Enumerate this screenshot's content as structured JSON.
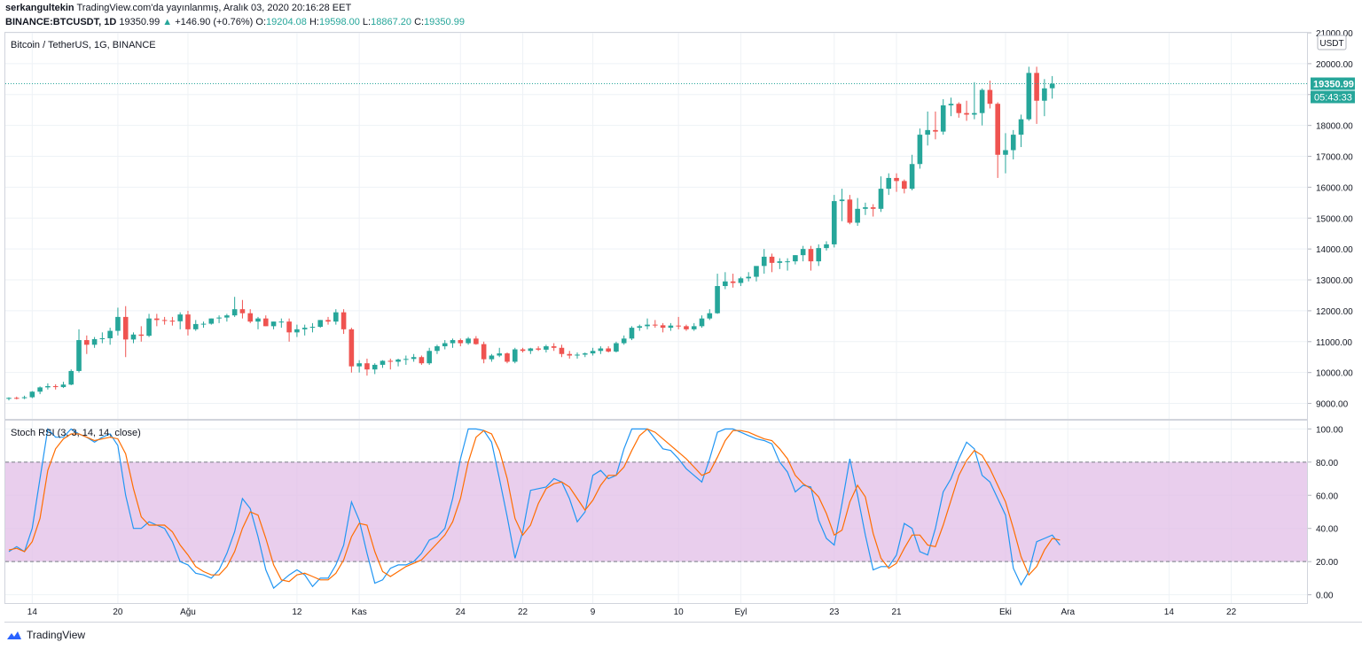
{
  "header": {
    "author": "serkangultekin",
    "published": "TradingView.com'da yayınlanmış, Aralık 03, 2020 20:16:28 EET",
    "symbol_line": "BINANCE:BTCUSDT, 1D",
    "last": "19350.99",
    "change": "+146.90 (+0.76%)",
    "o_label": "O:",
    "o": "19204.08",
    "h_label": "H:",
    "h": "19598.00",
    "l_label": "L:",
    "l": "18867.20",
    "c_label": "C:",
    "c": "19350.99"
  },
  "price_pane": {
    "title": "Bitcoin / TetherUS, 1G, BINANCE",
    "currency": "USDT",
    "last_price_label": "19350.99",
    "countdown_label": "05:43:33",
    "y_ticks": [
      "21000.00",
      "20000.00",
      "19000.00",
      "18000.00",
      "17000.00",
      "16000.00",
      "15000.00",
      "14000.00",
      "13000.00",
      "12000.00",
      "11000.00",
      "10000.00",
      "9000.00"
    ]
  },
  "osc_pane": {
    "title": "Stoch RSI (3, 3, 14, 14, close)",
    "y_ticks": [
      "100.00",
      "80.00",
      "60.00",
      "40.00",
      "20.00",
      "0.00"
    ]
  },
  "x_axis_labels": [
    "21",
    "Ağu",
    "10",
    "24",
    "Eyl",
    "14",
    "22",
    "Eki",
    "12",
    "20",
    "Kas",
    "9",
    "23",
    "Ara",
    "14",
    "22"
  ],
  "footer": {
    "brand": "TradingView"
  },
  "colors": {
    "up": "#26a69a",
    "down": "#ef5350",
    "k_line": "#2196f3",
    "d_line": "#ff6d00",
    "band_fill": "#e1bee7",
    "grid": "#eef2f6"
  },
  "chart_data": [
    {
      "type": "candlestick",
      "title": "Bitcoin / TetherUS, 1G, BINANCE",
      "ylim": [
        8500,
        21000
      ],
      "x_start": "2020-07-18",
      "x_end": "2020-12-03",
      "x_label_dates": {
        "21": "2020-07-21",
        "Ağu": "2020-08-01",
        "10": "2020-08-10",
        "24": "2020-08-24",
        "Eyl": "2020-09-01",
        "14": "2020-09-14",
        "22": "2020-09-22",
        "Eki": "2020-10-01",
        "12": "2020-10-12",
        "20": "2020-10-20",
        "Kas": "2020-11-01",
        "9": "2020-11-09",
        "23": "2020-11-23",
        "Ara": "2020-12-01",
        "14b": "2020-12-14",
        "22b": "2020-12-22"
      },
      "ohlc_daily": [
        [
          9150,
          9200,
          9100,
          9180
        ],
        [
          9180,
          9220,
          9130,
          9170
        ],
        [
          9170,
          9250,
          9140,
          9200
        ],
        [
          9200,
          9400,
          9170,
          9380
        ],
        [
          9380,
          9550,
          9300,
          9520
        ],
        [
          9520,
          9650,
          9450,
          9560
        ],
        [
          9560,
          9620,
          9450,
          9530
        ],
        [
          9530,
          9700,
          9500,
          9610
        ],
        [
          9610,
          10100,
          9590,
          10050
        ],
        [
          10050,
          11400,
          10000,
          11050
        ],
        [
          11050,
          11200,
          10600,
          10900
        ],
        [
          10900,
          11150,
          10800,
          11080
        ],
        [
          11080,
          11300,
          10950,
          11110
        ],
        [
          11110,
          11450,
          10900,
          11350
        ],
        [
          11350,
          12100,
          11200,
          11800
        ],
        [
          11800,
          12150,
          10500,
          11070
        ],
        [
          11070,
          11300,
          10950,
          11230
        ],
        [
          11230,
          11500,
          11000,
          11190
        ],
        [
          11190,
          11900,
          11150,
          11750
        ],
        [
          11750,
          11900,
          11500,
          11700
        ],
        [
          11700,
          11800,
          11550,
          11680
        ],
        [
          11680,
          11800,
          11520,
          11660
        ],
        [
          11660,
          11950,
          11400,
          11880
        ],
        [
          11880,
          12000,
          11200,
          11400
        ],
        [
          11400,
          11700,
          11350,
          11570
        ],
        [
          11570,
          11650,
          11450,
          11580
        ],
        [
          11580,
          11750,
          11550,
          11750
        ],
        [
          11750,
          11850,
          11600,
          11780
        ],
        [
          11780,
          11900,
          11650,
          11850
        ],
        [
          11850,
          12450,
          11800,
          12050
        ],
        [
          12050,
          12350,
          11750,
          11920
        ],
        [
          11920,
          12050,
          11600,
          11650
        ],
        [
          11650,
          11800,
          11400,
          11750
        ],
        [
          11750,
          11850,
          11500,
          11500
        ],
        [
          11500,
          11650,
          11400,
          11650
        ],
        [
          11650,
          11750,
          11450,
          11650
        ],
        [
          11650,
          11750,
          11000,
          11300
        ],
        [
          11300,
          11550,
          11150,
          11400
        ],
        [
          11400,
          11550,
          11200,
          11450
        ],
        [
          11450,
          11600,
          11300,
          11480
        ],
        [
          11480,
          11700,
          11450,
          11700
        ],
        [
          11700,
          11800,
          11550,
          11650
        ],
        [
          11650,
          12050,
          11550,
          11950
        ],
        [
          11950,
          12050,
          11250,
          11400
        ],
        [
          11400,
          11450,
          10000,
          10200
        ],
        [
          10200,
          10400,
          10000,
          10300
        ],
        [
          10300,
          10450,
          9900,
          10100
        ],
        [
          10100,
          10300,
          9950,
          10250
        ],
        [
          10250,
          10400,
          10150,
          10380
        ],
        [
          10380,
          10450,
          10100,
          10350
        ],
        [
          10350,
          10450,
          10200,
          10420
        ],
        [
          10420,
          10550,
          10250,
          10440
        ],
        [
          10440,
          10600,
          10350,
          10500
        ],
        [
          10500,
          10550,
          10250,
          10300
        ],
        [
          10300,
          10800,
          10250,
          10700
        ],
        [
          10700,
          10900,
          10600,
          10850
        ],
        [
          10850,
          11050,
          10750,
          10950
        ],
        [
          10950,
          11100,
          10800,
          11050
        ],
        [
          11050,
          11100,
          10850,
          10950
        ],
        [
          10950,
          11150,
          10900,
          11100
        ],
        [
          11100,
          11180,
          10900,
          10920
        ],
        [
          10920,
          11000,
          10300,
          10430
        ],
        [
          10430,
          10600,
          10350,
          10550
        ],
        [
          10550,
          10800,
          10500,
          10620
        ],
        [
          10620,
          10650,
          10300,
          10350
        ],
        [
          10350,
          10800,
          10300,
          10750
        ],
        [
          10750,
          10800,
          10650,
          10700
        ],
        [
          10700,
          10800,
          10600,
          10780
        ],
        [
          10780,
          10850,
          10700,
          10740
        ],
        [
          10740,
          10900,
          10650,
          10850
        ],
        [
          10850,
          10950,
          10700,
          10800
        ],
        [
          10800,
          10900,
          10500,
          10600
        ],
        [
          10600,
          10700,
          10450,
          10550
        ],
        [
          10550,
          10650,
          10450,
          10580
        ],
        [
          10580,
          10650,
          10500,
          10620
        ],
        [
          10620,
          10800,
          10550,
          10700
        ],
        [
          10700,
          10850,
          10600,
          10780
        ],
        [
          10780,
          10850,
          10650,
          10680
        ],
        [
          10680,
          11000,
          10650,
          10950
        ],
        [
          10950,
          11200,
          10900,
          11100
        ],
        [
          11100,
          11500,
          11050,
          11450
        ],
        [
          11450,
          11550,
          11350,
          11500
        ],
        [
          11500,
          11750,
          11400,
          11550
        ],
        [
          11550,
          11700,
          11450,
          11530
        ],
        [
          11530,
          11600,
          11300,
          11450
        ],
        [
          11450,
          11600,
          11350,
          11520
        ],
        [
          11520,
          11800,
          11400,
          11500
        ],
        [
          11500,
          11550,
          11350,
          11400
        ],
        [
          11400,
          11600,
          11350,
          11500
        ],
        [
          11500,
          11850,
          11450,
          11750
        ],
        [
          11750,
          12050,
          11700,
          11920
        ],
        [
          11920,
          13200,
          11900,
          12800
        ],
        [
          12800,
          13250,
          12700,
          12950
        ],
        [
          12950,
          13200,
          12750,
          12900
        ],
        [
          12900,
          13100,
          12800,
          13050
        ],
        [
          13050,
          13250,
          12950,
          13100
        ],
        [
          13100,
          13400,
          12950,
          13450
        ],
        [
          13450,
          14000,
          13200,
          13750
        ],
        [
          13750,
          13850,
          13250,
          13550
        ],
        [
          13550,
          13700,
          13350,
          13600
        ],
        [
          13600,
          13700,
          13300,
          13600
        ],
        [
          13600,
          13800,
          13500,
          13800
        ],
        [
          13800,
          14100,
          13600,
          14000
        ],
        [
          14000,
          14100,
          13300,
          13600
        ],
        [
          13600,
          14150,
          13450,
          14030
        ],
        [
          14030,
          14250,
          13950,
          14150
        ],
        [
          14150,
          15750,
          14050,
          15550
        ],
        [
          15550,
          15950,
          14900,
          15600
        ],
        [
          15600,
          15750,
          14800,
          14850
        ],
        [
          14850,
          15650,
          14750,
          15300
        ],
        [
          15300,
          15500,
          15100,
          15350
        ],
        [
          15350,
          15450,
          15050,
          15300
        ],
        [
          15300,
          16350,
          15200,
          15950
        ],
        [
          15950,
          16450,
          15750,
          16300
        ],
        [
          16300,
          16450,
          15850,
          16200
        ],
        [
          16200,
          16250,
          15800,
          15950
        ],
        [
          15950,
          17050,
          15900,
          16750
        ],
        [
          16750,
          17900,
          16600,
          17700
        ],
        [
          17700,
          18450,
          17350,
          17850
        ],
        [
          17850,
          18450,
          17550,
          17800
        ],
        [
          17800,
          18850,
          17700,
          18650
        ],
        [
          18650,
          18900,
          18300,
          18700
        ],
        [
          18700,
          18750,
          18250,
          18400
        ],
        [
          18400,
          18800,
          18150,
          18350
        ],
        [
          18350,
          19400,
          18200,
          18400
        ],
        [
          18400,
          19200,
          18000,
          19150
        ],
        [
          19150,
          19450,
          18550,
          18700
        ],
        [
          18700,
          18750,
          16300,
          17050
        ],
        [
          17050,
          17750,
          16450,
          17200
        ],
        [
          17200,
          17850,
          16900,
          17700
        ],
        [
          17700,
          18350,
          17300,
          18200
        ],
        [
          18200,
          19900,
          18150,
          19700
        ],
        [
          19700,
          19900,
          18050,
          18800
        ],
        [
          18800,
          19500,
          18300,
          19200
        ],
        [
          19204,
          19598,
          18867,
          19351
        ]
      ]
    },
    {
      "type": "line",
      "title": "Stoch RSI (3, 3, 14, 14, close)",
      "ylim": [
        -5,
        105
      ],
      "bands": {
        "upper": 80,
        "lower": 20
      },
      "series": [
        {
          "values": [
            26,
            29,
            26,
            40,
            70,
            100,
            95,
            95,
            100,
            97,
            95,
            92,
            95,
            97,
            90,
            60,
            40,
            40,
            44,
            42,
            40,
            32,
            20,
            18,
            13,
            12,
            10,
            15,
            25,
            38,
            58,
            52,
            35,
            15,
            4,
            8,
            12,
            15,
            12,
            5,
            10,
            10,
            18,
            30,
            56,
            45,
            25,
            7,
            9,
            16,
            18,
            18,
            20,
            25,
            33,
            35,
            40,
            58,
            82,
            100,
            100,
            99,
            92,
            70,
            47,
            22,
            38,
            63,
            64,
            65,
            70,
            68,
            58,
            44,
            50,
            72,
            75,
            70,
            72,
            88,
            100,
            100,
            100,
            94,
            88,
            87,
            82,
            76,
            72,
            68,
            82,
            98,
            100,
            100,
            98,
            96,
            94,
            93,
            91,
            80,
            74,
            62,
            66,
            65,
            45,
            34,
            30,
            55,
            82,
            60,
            36,
            15,
            17,
            17,
            24,
            43,
            40,
            26,
            24,
            40,
            62,
            70,
            82,
            92,
            88,
            72,
            68,
            58,
            48,
            16,
            6,
            14,
            32,
            34,
            36,
            30
          ]
        },
        {
          "values": [
            27,
            28,
            26,
            32,
            46,
            75,
            88,
            94,
            97,
            97,
            95,
            93,
            94,
            95,
            94,
            85,
            64,
            47,
            42,
            42,
            42,
            38,
            30,
            24,
            17,
            14,
            12,
            12,
            17,
            26,
            40,
            50,
            48,
            34,
            18,
            9,
            8,
            12,
            13,
            11,
            9,
            9,
            13,
            21,
            35,
            43,
            42,
            26,
            14,
            11,
            14,
            17,
            19,
            21,
            26,
            31,
            36,
            44,
            58,
            80,
            95,
            99,
            97,
            87,
            70,
            46,
            36,
            42,
            55,
            64,
            67,
            68,
            65,
            58,
            51,
            57,
            66,
            72,
            72,
            77,
            87,
            96,
            100,
            98,
            94,
            90,
            86,
            82,
            77,
            72,
            74,
            83,
            93,
            99,
            99,
            98,
            96,
            94,
            93,
            88,
            82,
            72,
            67,
            64,
            59,
            49,
            36,
            39,
            56,
            66,
            59,
            37,
            22,
            16,
            19,
            28,
            36,
            36,
            30,
            29,
            42,
            57,
            72,
            81,
            87,
            84,
            76,
            66,
            56,
            40,
            23,
            12,
            17,
            27,
            34,
            33
          ]
        }
      ]
    }
  ]
}
